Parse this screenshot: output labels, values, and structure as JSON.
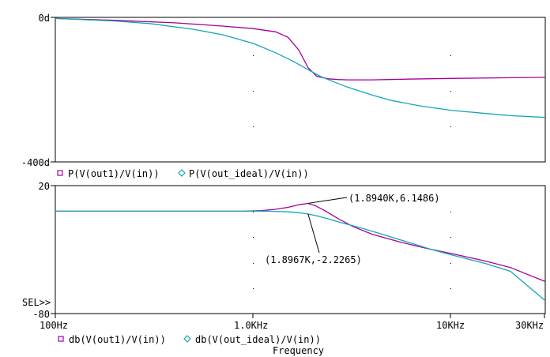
{
  "colors": {
    "series_1": "#a3009c",
    "series_2": "#14a6b4",
    "frame": "#000000",
    "grid_dot": "#000000",
    "background": "#ffffff"
  },
  "chart_data": [
    {
      "type": "line",
      "scale_x": "log",
      "xlim": [
        100,
        30000
      ],
      "ylim": [
        -400,
        0
      ],
      "y_ticks": [
        "0d",
        "-400d"
      ],
      "legend": [
        {
          "marker": "square",
          "label": "P(V(out1)/V(in))"
        },
        {
          "marker": "diamond",
          "label": "P(V(out_ideal)/V(in))"
        }
      ],
      "series": [
        {
          "name": "P(V(out1)/V(in))",
          "color": "#a3009c",
          "x": [
            100,
            200,
            400,
            700,
            1000,
            1300,
            1500,
            1700,
            1900,
            2100,
            2400,
            2700,
            3000,
            4000,
            6000,
            10000,
            20000,
            30000
          ],
          "y": [
            -3,
            -8,
            -15,
            -24,
            -31,
            -40,
            -55,
            -90,
            -140,
            -163,
            -170,
            -172,
            -173,
            -173,
            -171,
            -169,
            -167,
            -166
          ]
        },
        {
          "name": "P(V(out_ideal)/V(in))",
          "color": "#14a6b4",
          "x": [
            100,
            200,
            300,
            500,
            700,
            1000,
            1300,
            1600,
            1900,
            2200,
            2600,
            3000,
            4000,
            5000,
            7000,
            10000,
            15000,
            20000,
            30000
          ],
          "y": [
            -3,
            -10,
            -17,
            -33,
            -48,
            -72,
            -98,
            -122,
            -145,
            -164,
            -180,
            -193,
            -215,
            -230,
            -245,
            -257,
            -266,
            -272,
            -277
          ]
        }
      ]
    },
    {
      "type": "line",
      "scale_x": "log",
      "xlim": [
        100,
        30000
      ],
      "ylim": [
        -80,
        20
      ],
      "y_ticks": [
        "20",
        "-80"
      ],
      "x_ticks": [
        "100Hz",
        "1.0KHz",
        "10KHz",
        "30KHz"
      ],
      "xlabel": "Frequency",
      "prompt": "SEL>>",
      "legend": [
        {
          "marker": "square",
          "label": "db(V(out1)/V(in))"
        },
        {
          "marker": "diamond",
          "label": "db(V(out_ideal)/V(in))"
        }
      ],
      "series": [
        {
          "name": "db(V(out1)/V(in))",
          "color": "#a3009c",
          "x": [
            100,
            300,
            600,
            900,
            1100,
            1300,
            1500,
            1700,
            1894,
            2050,
            2300,
            2700,
            3200,
            4000,
            5500,
            7500,
            10000,
            15000,
            20000,
            30000
          ],
          "y": [
            0,
            0,
            0,
            0,
            0.5,
            1.5,
            3.0,
            5.0,
            6.1,
            4.5,
            0.5,
            -6,
            -12,
            -18,
            -24,
            -29,
            -33,
            -39,
            -44,
            -55
          ]
        },
        {
          "name": "db(V(out_ideal)/V(in))",
          "color": "#14a6b4",
          "x": [
            100,
            300,
            600,
            900,
            1200,
            1500,
            1700,
            1897,
            2100,
            2400,
            2800,
            3500,
            4500,
            6000,
            8000,
            10000,
            15000,
            20000,
            30000
          ],
          "y": [
            0,
            0,
            0,
            0,
            0,
            -0.5,
            -1.2,
            -2.2,
            -3.6,
            -6,
            -9,
            -13,
            -18,
            -24,
            -30,
            -34,
            -41,
            -47,
            -70
          ]
        }
      ],
      "annotations": [
        {
          "text": "(1.8940K,6.1486)",
          "x": 1894,
          "y": 6.1486
        },
        {
          "text": "(1.8967K,-2.2265)",
          "x": 1896.7,
          "y": -2.2265
        }
      ]
    }
  ]
}
